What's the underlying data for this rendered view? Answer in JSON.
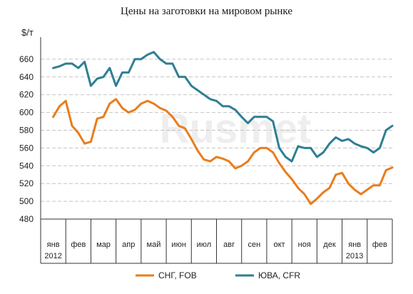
{
  "chart_data": {
    "type": "line",
    "title": "Цены на заготовки на мировом рынке",
    "ylabel": "$/т",
    "ylim": [
      480,
      680
    ],
    "yticks": [
      480,
      500,
      520,
      540,
      560,
      580,
      600,
      620,
      640,
      660
    ],
    "grid": "horizontal dashed",
    "legend_position": "bottom",
    "watermark": "Rusmet",
    "x_axis": {
      "categories": [
        {
          "label": "янв",
          "sub": "2012"
        },
        {
          "label": "фев",
          "sub": ""
        },
        {
          "label": "мар",
          "sub": ""
        },
        {
          "label": "апр",
          "sub": ""
        },
        {
          "label": "май",
          "sub": ""
        },
        {
          "label": "июн",
          "sub": ""
        },
        {
          "label": "июл",
          "sub": ""
        },
        {
          "label": "авг",
          "sub": ""
        },
        {
          "label": "сен",
          "sub": ""
        },
        {
          "label": "окт",
          "sub": ""
        },
        {
          "label": "ноя",
          "sub": ""
        },
        {
          "label": "дек",
          "sub": ""
        },
        {
          "label": "янв",
          "sub": "2013"
        },
        {
          "label": "фев",
          "sub": ""
        }
      ]
    },
    "series": [
      {
        "name": "СНГ, FOB",
        "color": "#E87D1E",
        "points": [
          [
            0.0,
            595
          ],
          [
            0.25,
            607
          ],
          [
            0.5,
            613
          ],
          [
            0.75,
            585
          ],
          [
            1.0,
            577
          ],
          [
            1.25,
            565
          ],
          [
            1.5,
            567
          ],
          [
            1.75,
            593
          ],
          [
            2.0,
            595
          ],
          [
            2.25,
            610
          ],
          [
            2.5,
            615
          ],
          [
            2.75,
            605
          ],
          [
            3.0,
            600
          ],
          [
            3.25,
            603
          ],
          [
            3.5,
            610
          ],
          [
            3.75,
            613
          ],
          [
            4.0,
            610
          ],
          [
            4.25,
            605
          ],
          [
            4.5,
            602
          ],
          [
            4.75,
            595
          ],
          [
            5.0,
            585
          ],
          [
            5.25,
            582
          ],
          [
            5.5,
            570
          ],
          [
            5.75,
            557
          ],
          [
            6.0,
            547
          ],
          [
            6.25,
            545
          ],
          [
            6.5,
            550
          ],
          [
            6.75,
            548
          ],
          [
            7.0,
            545
          ],
          [
            7.25,
            537
          ],
          [
            7.5,
            540
          ],
          [
            7.75,
            545
          ],
          [
            8.0,
            555
          ],
          [
            8.25,
            560
          ],
          [
            8.5,
            560
          ],
          [
            8.75,
            555
          ],
          [
            9.0,
            543
          ],
          [
            9.25,
            533
          ],
          [
            9.5,
            525
          ],
          [
            9.75,
            515
          ],
          [
            10.0,
            508
          ],
          [
            10.25,
            497
          ],
          [
            10.5,
            503
          ],
          [
            10.75,
            510
          ],
          [
            11.0,
            515
          ],
          [
            11.25,
            530
          ],
          [
            11.5,
            532
          ],
          [
            11.75,
            520
          ],
          [
            12.0,
            513
          ],
          [
            12.25,
            508
          ],
          [
            12.5,
            513
          ],
          [
            12.75,
            518
          ],
          [
            13.0,
            518
          ],
          [
            13.25,
            535
          ],
          [
            13.5,
            538
          ]
        ]
      },
      {
        "name": "ЮВА, CFR",
        "color": "#2E7F93",
        "points": [
          [
            0.0,
            650
          ],
          [
            0.25,
            652
          ],
          [
            0.5,
            655
          ],
          [
            0.75,
            655
          ],
          [
            1.0,
            650
          ],
          [
            1.25,
            657
          ],
          [
            1.5,
            630
          ],
          [
            1.75,
            638
          ],
          [
            2.0,
            640
          ],
          [
            2.25,
            650
          ],
          [
            2.5,
            630
          ],
          [
            2.75,
            645
          ],
          [
            3.0,
            645
          ],
          [
            3.25,
            660
          ],
          [
            3.5,
            660
          ],
          [
            3.75,
            665
          ],
          [
            4.0,
            668
          ],
          [
            4.25,
            660
          ],
          [
            4.5,
            655
          ],
          [
            4.75,
            655
          ],
          [
            5.0,
            640
          ],
          [
            5.25,
            640
          ],
          [
            5.5,
            630
          ],
          [
            5.75,
            625
          ],
          [
            6.0,
            620
          ],
          [
            6.25,
            615
          ],
          [
            6.5,
            613
          ],
          [
            6.75,
            607
          ],
          [
            7.0,
            607
          ],
          [
            7.25,
            603
          ],
          [
            7.5,
            595
          ],
          [
            7.75,
            588
          ],
          [
            8.0,
            595
          ],
          [
            8.25,
            595
          ],
          [
            8.5,
            595
          ],
          [
            8.75,
            590
          ],
          [
            9.0,
            560
          ],
          [
            9.25,
            550
          ],
          [
            9.5,
            545
          ],
          [
            9.75,
            562
          ],
          [
            10.0,
            560
          ],
          [
            10.25,
            560
          ],
          [
            10.5,
            550
          ],
          [
            10.75,
            555
          ],
          [
            11.0,
            565
          ],
          [
            11.25,
            572
          ],
          [
            11.5,
            568
          ],
          [
            11.75,
            570
          ],
          [
            12.0,
            565
          ],
          [
            12.25,
            562
          ],
          [
            12.5,
            560
          ],
          [
            12.75,
            555
          ],
          [
            13.0,
            560
          ],
          [
            13.25,
            580
          ],
          [
            13.5,
            585
          ]
        ]
      }
    ]
  }
}
